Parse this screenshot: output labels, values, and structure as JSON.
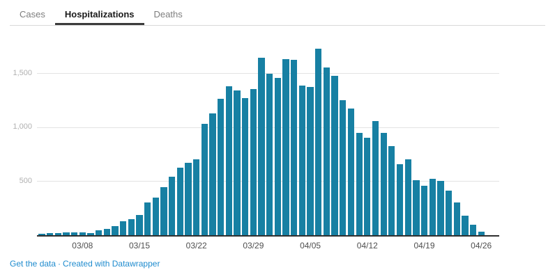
{
  "tabs": {
    "items": [
      {
        "id": "cases",
        "label": "Cases",
        "active": false
      },
      {
        "id": "hospitalizations",
        "label": "Hospitalizations",
        "active": true
      },
      {
        "id": "deaths",
        "label": "Deaths",
        "active": false
      }
    ]
  },
  "footer": {
    "get_data_label": "Get the data",
    "separator": "·",
    "credit_label": "Created with Datawrapper"
  },
  "colors": {
    "bar": "#1780a3",
    "link": "#1e8bce",
    "ytick_label": "#b0b0b0",
    "xtick_label": "#4f4f4f",
    "gridline": "#e3e3e3",
    "axisline": "#2f2f2f",
    "tab_active": "#1a1a1a",
    "tab_inactive": "#7d7d7d"
  },
  "chart_data": {
    "type": "bar",
    "title": "",
    "xlabel": "",
    "ylabel": "",
    "legend": "none",
    "grid": true,
    "ylim": [
      0,
      1800
    ],
    "ytick_values": [
      500,
      1000,
      1500
    ],
    "ytick_labels": [
      "500",
      "1,000",
      "1,500"
    ],
    "xtick_indices": [
      5,
      12,
      19,
      26,
      33,
      40,
      47,
      54
    ],
    "xtick_labels": [
      "03/08",
      "03/15",
      "03/22",
      "03/29",
      "04/05",
      "04/12",
      "04/19",
      "04/26"
    ],
    "x": [
      "03/03",
      "03/04",
      "03/05",
      "03/06",
      "03/07",
      "03/08",
      "03/09",
      "03/10",
      "03/11",
      "03/12",
      "03/13",
      "03/14",
      "03/15",
      "03/16",
      "03/17",
      "03/18",
      "03/19",
      "03/20",
      "03/21",
      "03/22",
      "03/23",
      "03/24",
      "03/25",
      "03/26",
      "03/27",
      "03/28",
      "03/29",
      "03/30",
      "03/31",
      "04/01",
      "04/02",
      "04/03",
      "04/04",
      "04/05",
      "04/06",
      "04/07",
      "04/08",
      "04/09",
      "04/10",
      "04/11",
      "04/12",
      "04/13",
      "04/14",
      "04/15",
      "04/16",
      "04/17",
      "04/18",
      "04/19",
      "04/20",
      "04/21",
      "04/22",
      "04/23",
      "04/24",
      "04/25",
      "04/26"
    ],
    "values": [
      10,
      22,
      18,
      25,
      28,
      25,
      22,
      48,
      60,
      85,
      130,
      148,
      185,
      300,
      345,
      445,
      540,
      625,
      672,
      705,
      1032,
      1130,
      1265,
      1376,
      1340,
      1270,
      1350,
      1640,
      1495,
      1456,
      1627,
      1625,
      1386,
      1371,
      1724,
      1552,
      1472,
      1250,
      1175,
      945,
      905,
      1055,
      950,
      825,
      655,
      700,
      510,
      460,
      520,
      505,
      415,
      300,
      180,
      100,
      30
    ]
  }
}
